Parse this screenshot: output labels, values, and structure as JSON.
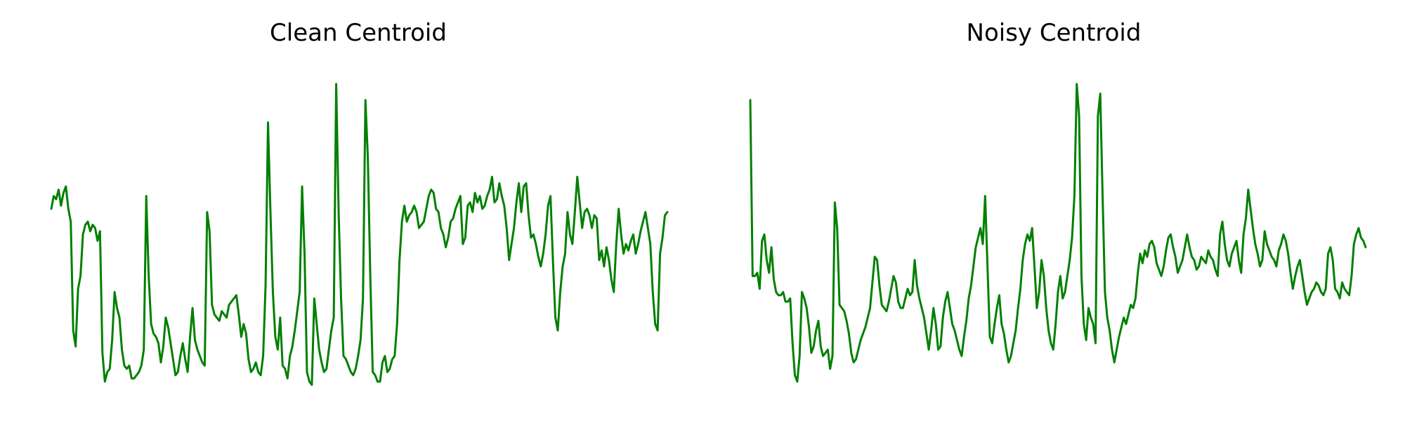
{
  "chart_data": [
    {
      "type": "line",
      "title": "Clean Centroid",
      "xlabel": "",
      "ylabel": "",
      "axes_visible": false,
      "grid": false,
      "line_color": "#008000",
      "y_domain": [
        0,
        1
      ],
      "y": [
        0.56,
        0.6,
        0.59,
        0.62,
        0.57,
        0.61,
        0.63,
        0.56,
        0.52,
        0.18,
        0.13,
        0.31,
        0.35,
        0.48,
        0.51,
        0.52,
        0.49,
        0.51,
        0.5,
        0.46,
        0.49,
        0.11,
        0.02,
        0.05,
        0.06,
        0.15,
        0.3,
        0.25,
        0.22,
        0.12,
        0.07,
        0.06,
        0.07,
        0.03,
        0.03,
        0.04,
        0.05,
        0.07,
        0.12,
        0.6,
        0.35,
        0.2,
        0.17,
        0.16,
        0.14,
        0.08,
        0.13,
        0.22,
        0.19,
        0.14,
        0.09,
        0.04,
        0.05,
        0.1,
        0.14,
        0.09,
        0.05,
        0.16,
        0.25,
        0.15,
        0.12,
        0.1,
        0.08,
        0.07,
        0.55,
        0.49,
        0.26,
        0.23,
        0.22,
        0.21,
        0.24,
        0.23,
        0.22,
        0.26,
        0.27,
        0.28,
        0.29,
        0.23,
        0.16,
        0.2,
        0.17,
        0.09,
        0.05,
        0.06,
        0.08,
        0.05,
        0.04,
        0.1,
        0.32,
        0.83,
        0.55,
        0.3,
        0.16,
        0.12,
        0.22,
        0.07,
        0.06,
        0.03,
        0.1,
        0.13,
        0.18,
        0.24,
        0.3,
        0.63,
        0.42,
        0.05,
        0.02,
        0.01,
        0.28,
        0.2,
        0.12,
        0.08,
        0.05,
        0.06,
        0.12,
        0.18,
        0.22,
        0.95,
        0.55,
        0.28,
        0.1,
        0.09,
        0.07,
        0.05,
        0.04,
        0.06,
        0.1,
        0.15,
        0.28,
        0.9,
        0.72,
        0.35,
        0.05,
        0.04,
        0.02,
        0.02,
        0.08,
        0.1,
        0.05,
        0.06,
        0.09,
        0.1,
        0.2,
        0.4,
        0.52,
        0.57,
        0.52,
        0.54,
        0.55,
        0.57,
        0.55,
        0.5,
        0.51,
        0.52,
        0.56,
        0.6,
        0.62,
        0.61,
        0.56,
        0.55,
        0.5,
        0.48,
        0.44,
        0.47,
        0.52,
        0.53,
        0.56,
        0.58,
        0.6,
        0.45,
        0.47,
        0.57,
        0.58,
        0.55,
        0.61,
        0.58,
        0.6,
        0.56,
        0.57,
        0.6,
        0.62,
        0.66,
        0.58,
        0.59,
        0.64,
        0.6,
        0.57,
        0.5,
        0.4,
        0.45,
        0.5,
        0.58,
        0.64,
        0.55,
        0.63,
        0.64,
        0.54,
        0.47,
        0.48,
        0.45,
        0.41,
        0.38,
        0.42,
        0.48,
        0.57,
        0.6,
        0.4,
        0.22,
        0.18,
        0.3,
        0.38,
        0.42,
        0.55,
        0.48,
        0.45,
        0.55,
        0.66,
        0.58,
        0.5,
        0.55,
        0.56,
        0.54,
        0.5,
        0.54,
        0.53,
        0.4,
        0.43,
        0.38,
        0.44,
        0.4,
        0.34,
        0.3,
        0.45,
        0.56,
        0.48,
        0.42,
        0.45,
        0.43,
        0.46,
        0.48,
        0.42,
        0.45,
        0.49,
        0.52,
        0.55,
        0.5,
        0.45,
        0.3,
        0.2,
        0.18,
        0.42,
        0.47,
        0.54,
        0.55
      ]
    },
    {
      "type": "line",
      "title": "Noisy Centroid",
      "xlabel": "",
      "ylabel": "",
      "axes_visible": false,
      "grid": false,
      "line_color": "#008000",
      "y_domain": [
        0,
        1
      ],
      "y": [
        0.9,
        0.35,
        0.35,
        0.36,
        0.31,
        0.46,
        0.48,
        0.4,
        0.36,
        0.44,
        0.34,
        0.3,
        0.29,
        0.29,
        0.3,
        0.27,
        0.27,
        0.28,
        0.14,
        0.04,
        0.02,
        0.1,
        0.3,
        0.28,
        0.25,
        0.19,
        0.11,
        0.13,
        0.18,
        0.21,
        0.13,
        0.1,
        0.11,
        0.12,
        0.06,
        0.1,
        0.58,
        0.5,
        0.26,
        0.25,
        0.24,
        0.21,
        0.17,
        0.11,
        0.08,
        0.09,
        0.12,
        0.15,
        0.17,
        0.19,
        0.22,
        0.25,
        0.33,
        0.41,
        0.4,
        0.32,
        0.26,
        0.25,
        0.24,
        0.27,
        0.31,
        0.35,
        0.33,
        0.27,
        0.25,
        0.25,
        0.28,
        0.31,
        0.29,
        0.3,
        0.4,
        0.32,
        0.28,
        0.25,
        0.22,
        0.17,
        0.12,
        0.18,
        0.25,
        0.2,
        0.12,
        0.13,
        0.22,
        0.27,
        0.3,
        0.25,
        0.2,
        0.18,
        0.15,
        0.12,
        0.1,
        0.16,
        0.21,
        0.28,
        0.32,
        0.38,
        0.44,
        0.47,
        0.5,
        0.45,
        0.6,
        0.38,
        0.16,
        0.14,
        0.2,
        0.25,
        0.29,
        0.2,
        0.17,
        0.12,
        0.08,
        0.1,
        0.14,
        0.18,
        0.25,
        0.31,
        0.4,
        0.45,
        0.48,
        0.46,
        0.5,
        0.38,
        0.25,
        0.3,
        0.4,
        0.35,
        0.25,
        0.18,
        0.14,
        0.12,
        0.2,
        0.3,
        0.35,
        0.28,
        0.3,
        0.35,
        0.4,
        0.47,
        0.6,
        0.95,
        0.85,
        0.35,
        0.2,
        0.15,
        0.25,
        0.22,
        0.2,
        0.14,
        0.85,
        0.92,
        0.6,
        0.3,
        0.22,
        0.18,
        0.12,
        0.08,
        0.12,
        0.16,
        0.19,
        0.22,
        0.2,
        0.23,
        0.26,
        0.25,
        0.28,
        0.36,
        0.42,
        0.39,
        0.43,
        0.41,
        0.45,
        0.46,
        0.44,
        0.39,
        0.37,
        0.35,
        0.38,
        0.43,
        0.47,
        0.48,
        0.44,
        0.41,
        0.36,
        0.38,
        0.4,
        0.44,
        0.48,
        0.44,
        0.41,
        0.4,
        0.37,
        0.38,
        0.41,
        0.4,
        0.39,
        0.43,
        0.41,
        0.4,
        0.37,
        0.35,
        0.48,
        0.52,
        0.45,
        0.4,
        0.38,
        0.42,
        0.44,
        0.46,
        0.4,
        0.36,
        0.48,
        0.53,
        0.62,
        0.56,
        0.5,
        0.45,
        0.42,
        0.38,
        0.4,
        0.49,
        0.45,
        0.43,
        0.41,
        0.4,
        0.38,
        0.43,
        0.45,
        0.48,
        0.46,
        0.42,
        0.36,
        0.31,
        0.35,
        0.38,
        0.4,
        0.35,
        0.3,
        0.26,
        0.28,
        0.3,
        0.31,
        0.33,
        0.32,
        0.3,
        0.29,
        0.31,
        0.42,
        0.44,
        0.4,
        0.31,
        0.3,
        0.28,
        0.33,
        0.31,
        0.3,
        0.29,
        0.35,
        0.45,
        0.48,
        0.5,
        0.47,
        0.46,
        0.44
      ]
    }
  ]
}
